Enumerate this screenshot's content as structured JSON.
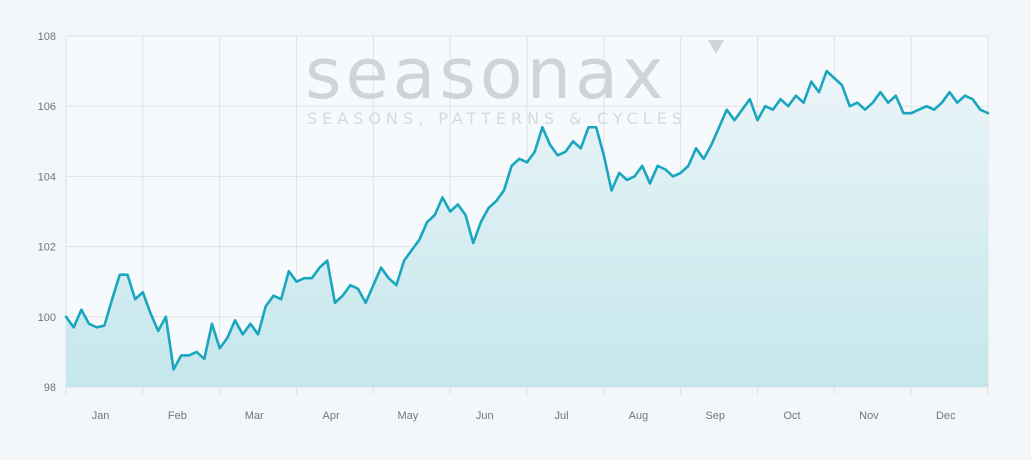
{
  "watermark": {
    "name": "seasonax",
    "tagline": "SEASONS, PATTERNS & CYCLES"
  },
  "colors": {
    "line": "#1aa6bf",
    "area_top": "#eaf4f8",
    "area_bottom": "#c5e7ec",
    "grid": "#dde3e8",
    "background": "#f3f7fa"
  },
  "chart_data": {
    "type": "area",
    "title": "",
    "xlabel": "",
    "ylabel": "",
    "ylim": [
      98,
      108
    ],
    "yticks": [
      98,
      100,
      102,
      104,
      106,
      108
    ],
    "grid": true,
    "months": [
      "Jan",
      "Feb",
      "Mar",
      "Apr",
      "May",
      "Jun",
      "Jul",
      "Aug",
      "Sep",
      "Oct",
      "Nov",
      "Dec"
    ],
    "series": [
      {
        "x": [
          0,
          0.1,
          0.2,
          0.3,
          0.4,
          0.5,
          0.6,
          0.7,
          0.8,
          0.9,
          1.0,
          1.1,
          1.2,
          1.3,
          1.4,
          1.5,
          1.6,
          1.7,
          1.8,
          1.9,
          2.0,
          2.1,
          2.2,
          2.3,
          2.4,
          2.5,
          2.6,
          2.7,
          2.8,
          2.9,
          3.0,
          3.1,
          3.2,
          3.3,
          3.4,
          3.5,
          3.6,
          3.7,
          3.8,
          3.9,
          4.0,
          4.1,
          4.2,
          4.3,
          4.4,
          4.5,
          4.6,
          4.7,
          4.8,
          4.9,
          5.0,
          5.1,
          5.2,
          5.3,
          5.4,
          5.5,
          5.6,
          5.7,
          5.8,
          5.9,
          6.0,
          6.1,
          6.2,
          6.3,
          6.4,
          6.5,
          6.6,
          6.7,
          6.8,
          6.9,
          7.0,
          7.1,
          7.2,
          7.3,
          7.4,
          7.5,
          7.6,
          7.7,
          7.8,
          7.9,
          8.0,
          8.1,
          8.2,
          8.3,
          8.4,
          8.5,
          8.6,
          8.7,
          8.8,
          8.9,
          9.0,
          9.1,
          9.2,
          9.3,
          9.4,
          9.5,
          9.6,
          9.7,
          9.8,
          9.9,
          10.0,
          10.1,
          10.2,
          10.3,
          10.4,
          10.5,
          10.6,
          10.7,
          10.8,
          10.9,
          11.0,
          11.1,
          11.2,
          11.3,
          11.4,
          11.5,
          11.6,
          11.7,
          11.8,
          11.9,
          12.0
        ],
        "values": [
          100.0,
          99.7,
          100.2,
          99.8,
          99.7,
          99.75,
          100.5,
          101.2,
          101.2,
          100.5,
          100.7,
          100.1,
          99.6,
          100.0,
          98.5,
          98.9,
          98.9,
          99.0,
          98.8,
          99.8,
          99.1,
          99.4,
          99.9,
          99.5,
          99.8,
          99.5,
          100.3,
          100.6,
          100.5,
          101.3,
          101.0,
          101.1,
          101.1,
          101.4,
          101.6,
          100.4,
          100.6,
          100.9,
          100.8,
          100.4,
          100.9,
          101.4,
          101.1,
          100.9,
          101.6,
          101.9,
          102.2,
          102.7,
          102.9,
          103.4,
          103.0,
          103.2,
          102.9,
          102.1,
          102.7,
          103.1,
          103.3,
          103.6,
          104.3,
          104.5,
          104.4,
          104.7,
          105.4,
          104.9,
          104.6,
          104.7,
          105.0,
          104.8,
          105.4,
          105.4,
          104.6,
          103.6,
          104.1,
          103.9,
          104.0,
          104.3,
          103.8,
          104.3,
          104.2,
          104.0,
          104.1,
          104.3,
          104.8,
          104.5,
          104.9,
          105.4,
          105.9,
          105.6,
          105.9,
          106.2,
          105.6,
          106.0,
          105.9,
          106.2,
          106.0,
          106.3,
          106.1,
          106.7,
          106.4,
          107.0,
          106.8,
          106.6,
          106.0,
          106.1,
          105.9,
          106.1,
          106.4,
          106.1,
          106.3,
          105.8,
          105.8,
          105.9,
          106.0,
          105.9,
          106.1,
          106.4,
          106.1,
          106.3,
          106.2,
          105.9,
          105.8
        ]
      }
    ]
  }
}
